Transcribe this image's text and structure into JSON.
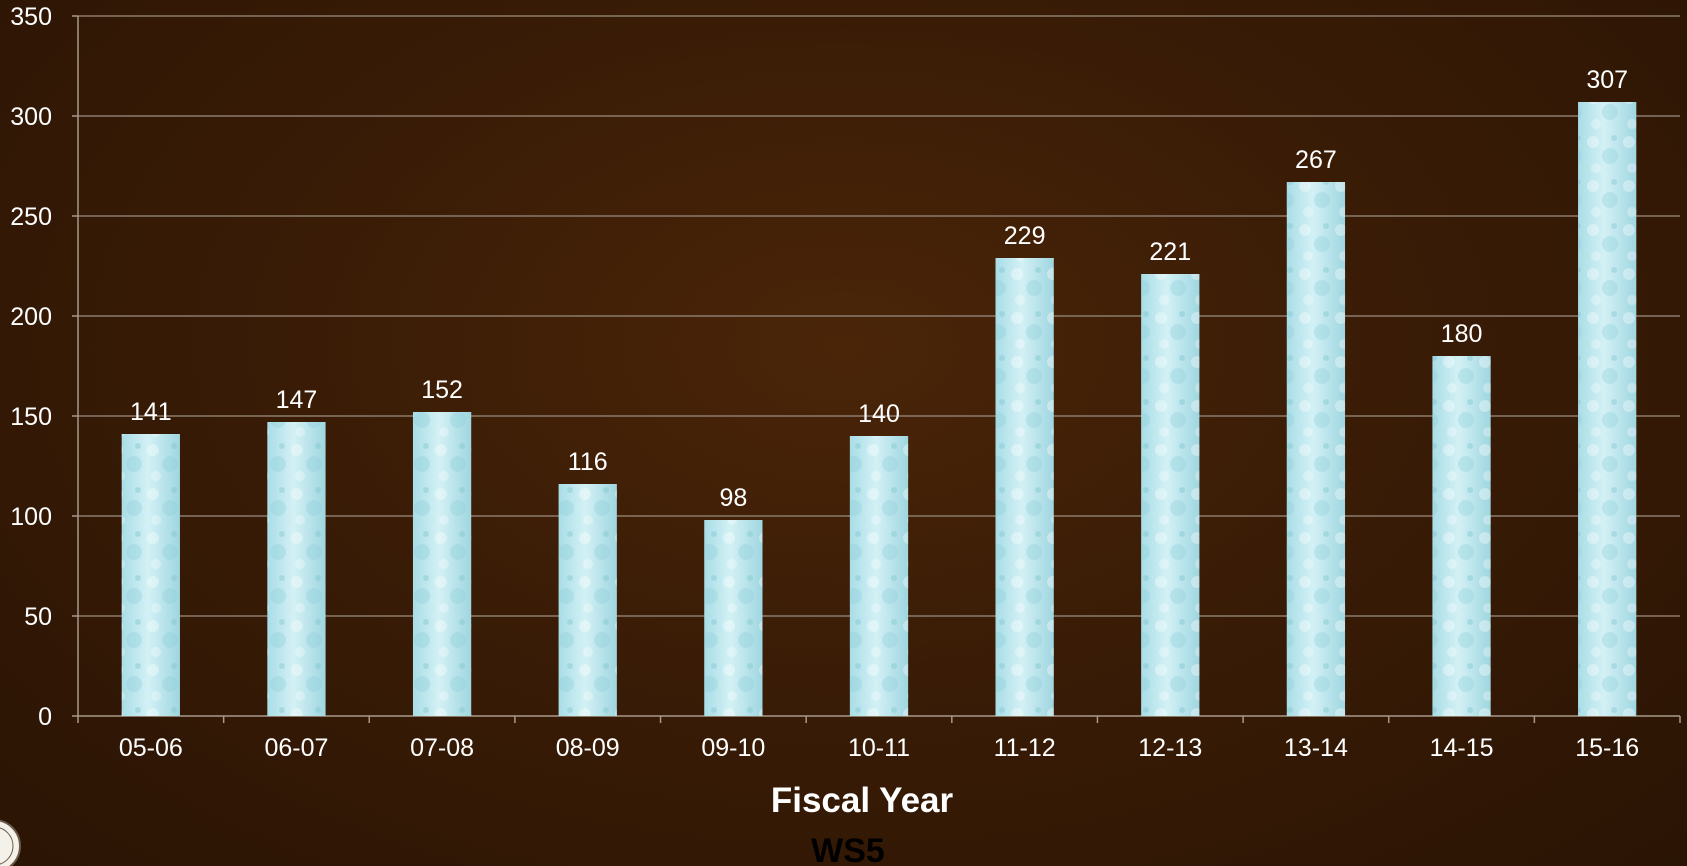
{
  "chart_data": {
    "type": "bar",
    "categories": [
      "05-06",
      "06-07",
      "07-08",
      "08-09",
      "09-10",
      "10-11",
      "11-12",
      "12-13",
      "13-14",
      "14-15",
      "15-16"
    ],
    "values": [
      141,
      147,
      152,
      116,
      98,
      140,
      229,
      221,
      267,
      180,
      307
    ],
    "title": "",
    "xlabel": "Fiscal Year",
    "ylabel": "",
    "ylim": [
      0,
      350
    ],
    "yticks": [
      0,
      50,
      100,
      150,
      200,
      250,
      300,
      350
    ],
    "grid": true,
    "legend": "none",
    "bar_color": "#bfe9f0",
    "background_color": "#3a1c06"
  },
  "footer": {
    "label": "WS5"
  }
}
